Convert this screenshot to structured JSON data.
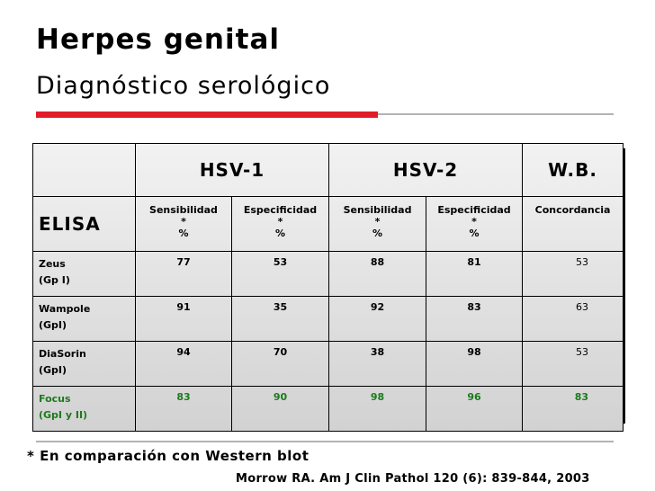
{
  "slide": {
    "title": "Herpes genital",
    "subtitle": "Diagnóstico serológico"
  },
  "table": {
    "groups": [
      "HSV-1",
      "HSV-2",
      "W.B."
    ],
    "row_header": "ELISA",
    "columns": [
      {
        "line1": "Sensibilidad",
        "line2": "*",
        "line3": "%"
      },
      {
        "line1": "Especificidad",
        "line2": "*",
        "line3": "%"
      },
      {
        "line1": "Sensibilidad",
        "line2": "*",
        "line3": "%"
      },
      {
        "line1": "Especificidad",
        "line2": "*",
        "line3": "%"
      },
      {
        "line1": "Concordancia",
        "line2": "",
        "line3": ""
      }
    ],
    "rows": [
      {
        "name": "Zeus",
        "sub": "(Gp I)",
        "values": [
          "77",
          "53",
          "88",
          "81",
          "53"
        ]
      },
      {
        "name": "Wampole",
        "sub": "(GpI)",
        "values": [
          "91",
          "35",
          "92",
          "83",
          "63"
        ]
      },
      {
        "name": "DiaSorin",
        "sub": "(GpI)",
        "values": [
          "94",
          "70",
          "38",
          "98",
          "53"
        ]
      },
      {
        "name": "Focus",
        "sub": "(GpI y II)",
        "values": [
          "83",
          "90",
          "98",
          "96",
          "83"
        ]
      }
    ]
  },
  "footnote": "* En comparación con Western blot",
  "citation": "Morrow RA. Am J Clin Pathol 120 (6): 839-844, 2003",
  "colors": {
    "accent_red": "#e11d2a",
    "highlight_green": "#1c7a1c"
  }
}
